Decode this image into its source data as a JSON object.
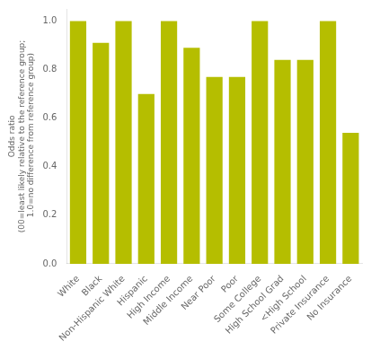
{
  "chart_data": {
    "type": "bar",
    "categories": [
      "White",
      "Black",
      "Non-Hispanic White",
      "Hispanic",
      "High Income",
      "Middle Income",
      "Near Poor",
      "Poor",
      "Some College",
      "High School Grad",
      "<High School",
      "Private Insurance",
      "No Insurance"
    ],
    "values": [
      1.0,
      0.91,
      1.0,
      0.7,
      1.0,
      0.89,
      0.77,
      0.77,
      1.0,
      0.84,
      0.84,
      1.0,
      0.54
    ],
    "color": "#b5be00",
    "ylabel": [
      "Odds ratio",
      "(00=least likely relative to the reference group;",
      " 1.0=no difference from reference group)"
    ],
    "ylim": [
      0.0,
      1.05
    ],
    "yticks": [
      {
        "value": 0,
        "label": "0.0"
      },
      0.2,
      0.4,
      0.6,
      0.8,
      {
        "value": 1,
        "label": "1.0"
      }
    ],
    "grid": false
  }
}
